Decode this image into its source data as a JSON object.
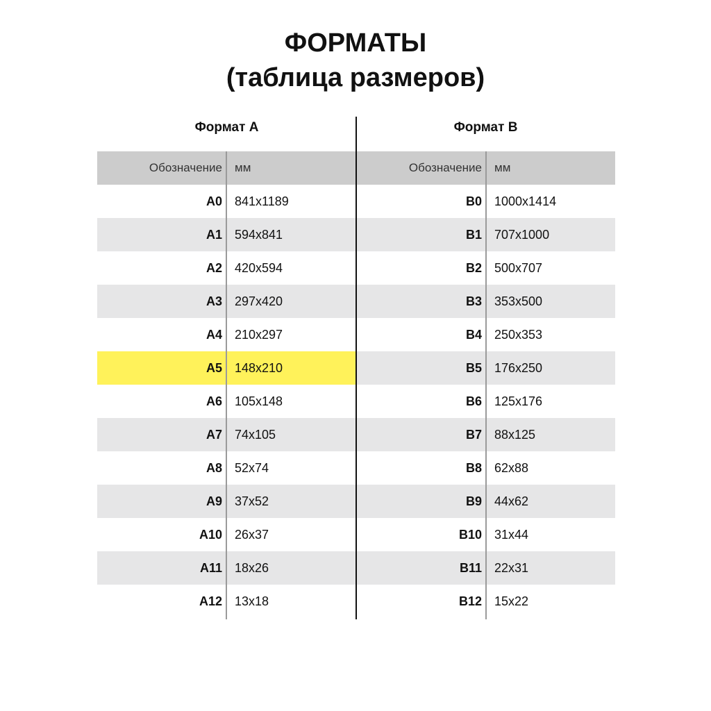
{
  "title": {
    "line1": "ФОРМАТЫ",
    "line2": "(таблица размеров)"
  },
  "sections": {
    "left": "Формат А",
    "right": "Формат В"
  },
  "columns": {
    "designation": "Обозначение",
    "unit": "мм"
  },
  "colors": {
    "header_bg": "#cccccc",
    "stripe_bg": "#e6e6e7",
    "highlight": "#fff25a"
  },
  "highlighted": "A5",
  "rows": [
    {
      "a": "A0",
      "a_size": "841x1189",
      "b": "B0",
      "b_size": "1000x1414"
    },
    {
      "a": "A1",
      "a_size": "594x841",
      "b": "B1",
      "b_size": "707x1000"
    },
    {
      "a": "A2",
      "a_size": "420x594",
      "b": "B2",
      "b_size": "500x707"
    },
    {
      "a": "A3",
      "a_size": "297x420",
      "b": "B3",
      "b_size": "353x500"
    },
    {
      "a": "A4",
      "a_size": "210x297",
      "b": "B4",
      "b_size": "250x353"
    },
    {
      "a": "A5",
      "a_size": "148x210",
      "b": "B5",
      "b_size": "176x250"
    },
    {
      "a": "A6",
      "a_size": "105x148",
      "b": "B6",
      "b_size": "125x176"
    },
    {
      "a": "A7",
      "a_size": "74x105",
      "b": "B7",
      "b_size": "88x125"
    },
    {
      "a": "A8",
      "a_size": "52x74",
      "b": "B8",
      "b_size": "62x88"
    },
    {
      "a": "A9",
      "a_size": "37x52",
      "b": "B9",
      "b_size": "44x62"
    },
    {
      "a": "A10",
      "a_size": "26x37",
      "b": "B10",
      "b_size": "31x44"
    },
    {
      "a": "A11",
      "a_size": "18x26",
      "b": "B11",
      "b_size": "22x31"
    },
    {
      "a": "A12",
      "a_size": "13x18",
      "b": "B12",
      "b_size": "15x22"
    }
  ]
}
